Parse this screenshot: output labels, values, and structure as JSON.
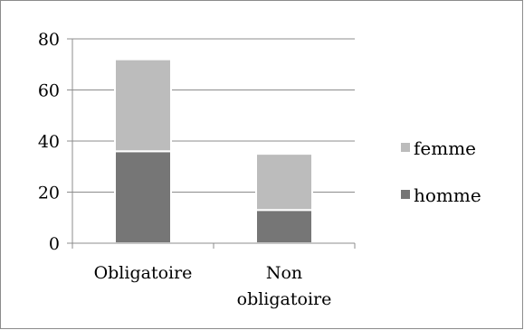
{
  "chart_data": {
    "type": "bar",
    "stacked": true,
    "categories": [
      [
        "Obligatoire"
      ],
      [
        "Non",
        "obligatoire"
      ]
    ],
    "series": [
      {
        "name": "homme",
        "values": [
          36,
          13
        ],
        "color": "#767676"
      },
      {
        "name": "femme",
        "values": [
          36,
          22
        ],
        "color": "#bcbcbc"
      }
    ],
    "ylim": [
      0,
      80
    ],
    "yticks": [
      0,
      20,
      40,
      60,
      80
    ],
    "grid": true,
    "legend_position": "right",
    "legend_order": [
      "femme",
      "homme"
    ]
  }
}
